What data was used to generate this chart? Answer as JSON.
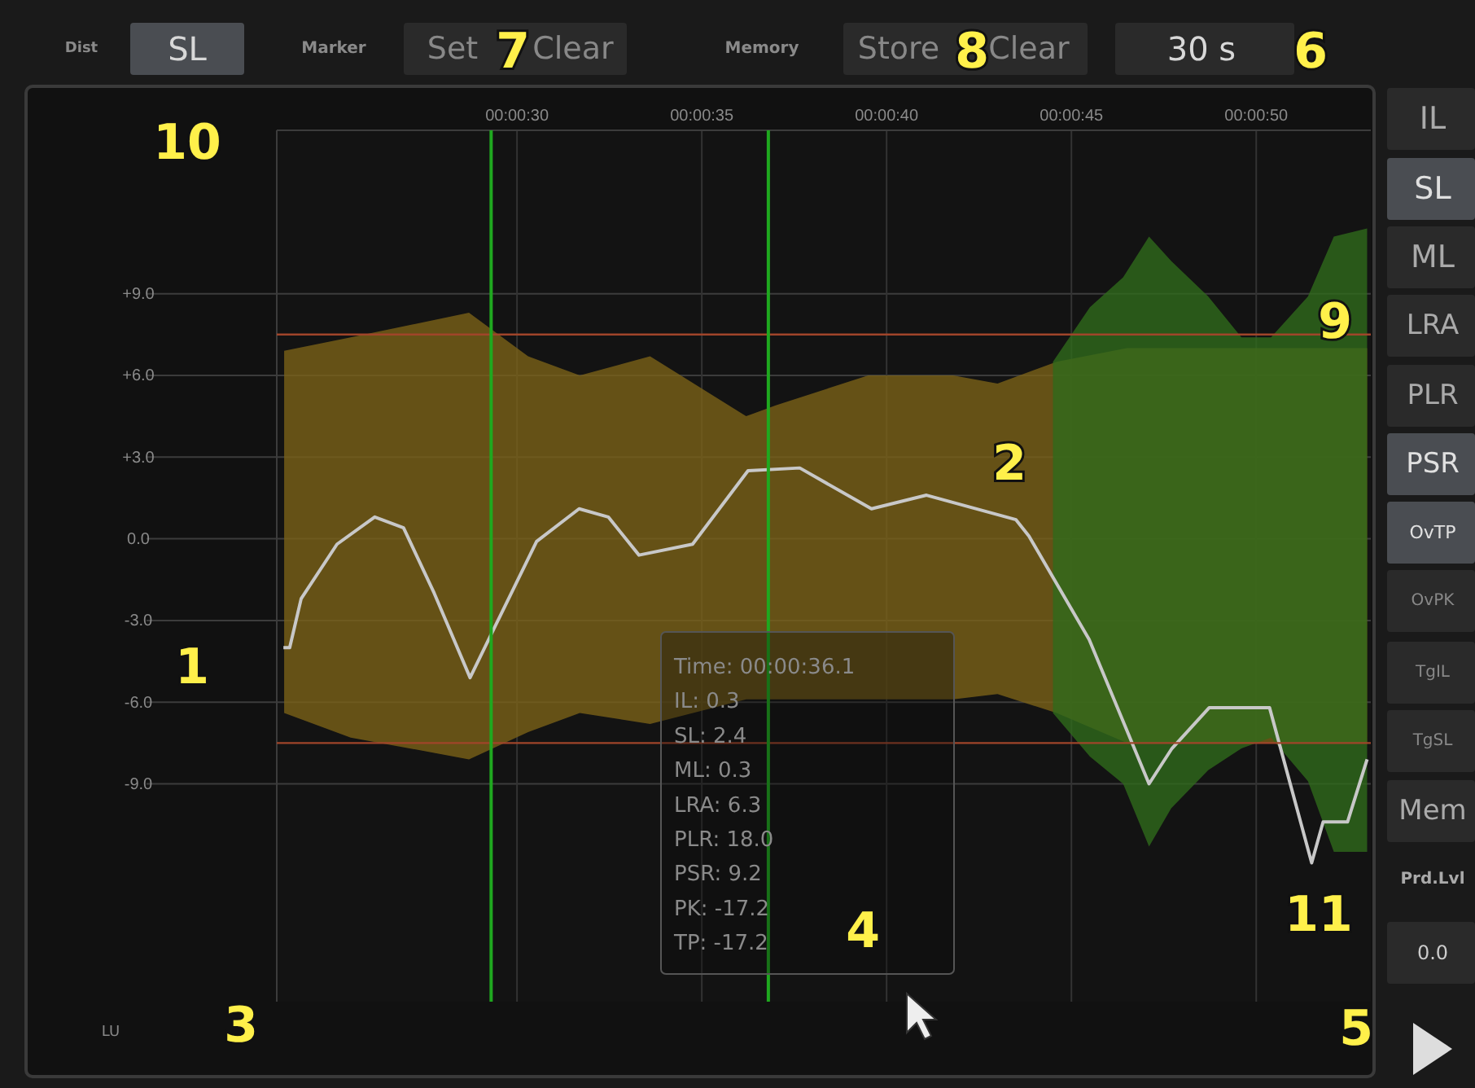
{
  "chart_data": {
    "type": "line",
    "xlim": [
      23.5,
      53.1
    ],
    "ylim": [
      -17,
      15
    ],
    "xticks": [
      {
        "value": 30,
        "label": "00:00:30"
      },
      {
        "value": 35,
        "label": "00:00:35"
      },
      {
        "value": 40,
        "label": "00:00:40"
      },
      {
        "value": 45,
        "label": "00:00:45"
      },
      {
        "value": 50,
        "label": "00:00:50"
      }
    ],
    "yticks": [
      {
        "value": 9,
        "label": "+9.0"
      },
      {
        "value": 6,
        "label": "+6.0"
      },
      {
        "value": 3,
        "label": "+3.0"
      },
      {
        "value": 0,
        "label": "0.0"
      },
      {
        "value": -3,
        "label": "-3.0"
      },
      {
        "value": -6,
        "label": "-6.0"
      },
      {
        "value": -9,
        "label": "-9.0"
      }
    ],
    "grid": true,
    "marker": "none",
    "line_style": "solid",
    "series": [
      {
        "type": "area",
        "color": "#7a6218",
        "x": [
          23.7,
          25.5,
          28.7,
          30.3,
          31.7,
          33.6,
          36.2,
          37.0,
          39.5,
          41.8,
          43.0,
          44.6,
          46.5,
          48.5,
          50.5,
          53.0
        ],
        "values": [
          null,
          null,
          null,
          null,
          null,
          null,
          null,
          null,
          null,
          null,
          null,
          null,
          null,
          null,
          null,
          null
        ],
        "upper": [
          6.9,
          7.4,
          8.3,
          6.7,
          6.0,
          6.7,
          4.5,
          4.9,
          6.0,
          6.0,
          5.7,
          6.5,
          7.0,
          7.0,
          7.0,
          7.0
        ],
        "lower": [
          -6.4,
          -7.3,
          -8.1,
          -7.1,
          -6.4,
          -6.8,
          -5.9,
          -5.9,
          -5.9,
          -5.9,
          -5.7,
          -6.4,
          -7.5,
          -7.5,
          -7.5,
          -7.5
        ]
      },
      {
        "type": "area",
        "color": "#2f6a1c",
        "x": [
          44.5,
          45.5,
          46.4,
          47.1,
          47.7,
          48.7,
          49.6,
          50.4,
          51.4,
          52.1,
          53.0
        ],
        "values": [
          null,
          null,
          null,
          null,
          null,
          null,
          null,
          null,
          null,
          null,
          null
        ],
        "upper": [
          6.5,
          8.5,
          9.6,
          11.1,
          10.2,
          8.9,
          7.4,
          7.4,
          8.9,
          11.1,
          11.4
        ],
        "lower": [
          -6.4,
          -8.0,
          -9.0,
          -11.3,
          -9.9,
          -8.5,
          -7.7,
          -7.3,
          -8.9,
          -11.5,
          -11.5
        ]
      },
      {
        "color": "#c8c8c8",
        "x": [
          23.68,
          23.85,
          24.16,
          25.13,
          26.15,
          26.93,
          27.76,
          28.73,
          29.52,
          30.53,
          31.68,
          32.47,
          33.3,
          34.75,
          36.25,
          37.65,
          39.59,
          41.08,
          43.5,
          43.85,
          45.48,
          47.1,
          47.72,
          48.73,
          50.36,
          50.84,
          51.5,
          51.81,
          52.47,
          53.0
        ],
        "values": [
          -4.0,
          -4.0,
          -2.2,
          -0.2,
          0.8,
          0.4,
          -2.0,
          -5.1,
          -2.9,
          -0.1,
          1.1,
          0.8,
          -0.6,
          -0.2,
          2.5,
          2.6,
          1.1,
          1.6,
          0.7,
          0.1,
          -3.7,
          -9.0,
          -7.7,
          -6.2,
          -6.2,
          -8.6,
          -11.9,
          -10.4,
          -10.4,
          -8.1
        ]
      }
    ],
    "ref_lines": [
      {
        "axis": "y",
        "value": 7.5,
        "color": "#a0452a"
      },
      {
        "axis": "y",
        "value": -7.5,
        "color": "#a0452a"
      },
      {
        "axis": "x",
        "value": 29.3,
        "color": "#1fa81f"
      },
      {
        "axis": "x",
        "value": 36.8,
        "color": "#1fa81f"
      }
    ],
    "annotations": [
      "Dist",
      "SL",
      "Marker",
      "Set",
      "Clear",
      "Memory",
      "Store",
      "Clear",
      "30 s",
      "IL",
      "SL",
      "ML",
      "LRA",
      "PLR",
      "PSR",
      "OvTP",
      "OvPK",
      "TgIL",
      "TgSL",
      "Mem",
      "Prd.Lvl",
      "0.0",
      "Time: 00:00:36.1",
      "IL: 0.3",
      "SL: 2.4",
      "ML: 0.3",
      "LRA: 6.3",
      "PLR: 18.0",
      "PSR: 9.2",
      "PK: -17.2",
      "TP: -17.2",
      "LU",
      "10",
      "1",
      "2",
      "3",
      "4",
      "5",
      "6",
      "7",
      "8",
      "9",
      "11"
    ]
  }
}
